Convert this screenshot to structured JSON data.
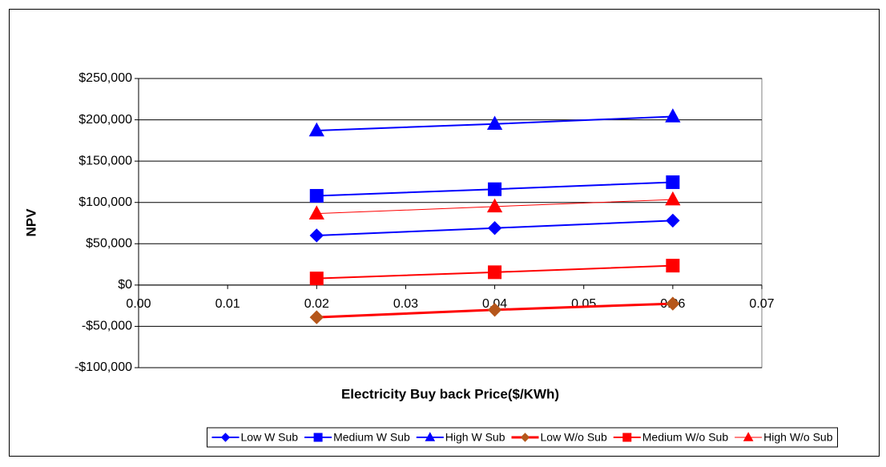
{
  "chart_data": {
    "type": "line",
    "x_label": "Electricity Buy back Price($/KWh)",
    "y_label": "NPV",
    "x": [
      0.02,
      0.04,
      0.06
    ],
    "xlim": [
      0,
      0.07
    ],
    "xticks": [
      {
        "value": 0,
        "label": "0.00"
      },
      0.01,
      0.02,
      0.03,
      0.04,
      0.05,
      0.06,
      0.07
    ],
    "ylim": [
      -100000,
      250000
    ],
    "yticks": [
      {
        "value": -100000,
        "label": "-$100,000"
      },
      {
        "value": -50000,
        "label": "-$50,000"
      },
      {
        "value": 0,
        "label": "$0"
      },
      {
        "value": 50000,
        "label": "$50,000"
      },
      {
        "value": 100000,
        "label": "$100,000"
      },
      {
        "value": 150000,
        "label": "$150,000"
      },
      {
        "value": 200000,
        "label": "$200,000"
      },
      {
        "value": 250000,
        "label": "$250,000"
      }
    ],
    "grid": true,
    "legend": "bottom",
    "series": [
      {
        "name": "Low W Sub",
        "color": "#0000ff",
        "marker": "diamond",
        "marker_color": "#0000ff",
        "line_width": 2,
        "values": [
          60000,
          69000,
          78000
        ]
      },
      {
        "name": "Medium W Sub",
        "color": "#0000ff",
        "marker": "square",
        "marker_color": "#0000ff",
        "line_width": 2,
        "values": [
          108000,
          116000,
          124500
        ]
      },
      {
        "name": "High W Sub",
        "color": "#0000ff",
        "marker": "triangle",
        "marker_color": "#0000ff",
        "line_width": 2,
        "values": [
          187000,
          195000,
          204000
        ]
      },
      {
        "name": "Low W/o Sub",
        "color": "#ff0000",
        "marker": "diamond",
        "marker_color": "#b5561a",
        "line_width": 3,
        "values": [
          -39000,
          -30000,
          -22500
        ]
      },
      {
        "name": "Medium W/o Sub",
        "color": "#ff0000",
        "marker": "square",
        "marker_color": "#ff0000",
        "line_width": 2,
        "values": [
          8000,
          15500,
          23500
        ]
      },
      {
        "name": "High W/o Sub",
        "color": "#ff0000",
        "marker": "triangle",
        "marker_color": "#ff0000",
        "line_width": 1,
        "values": [
          86500,
          95000,
          103500
        ]
      }
    ]
  }
}
